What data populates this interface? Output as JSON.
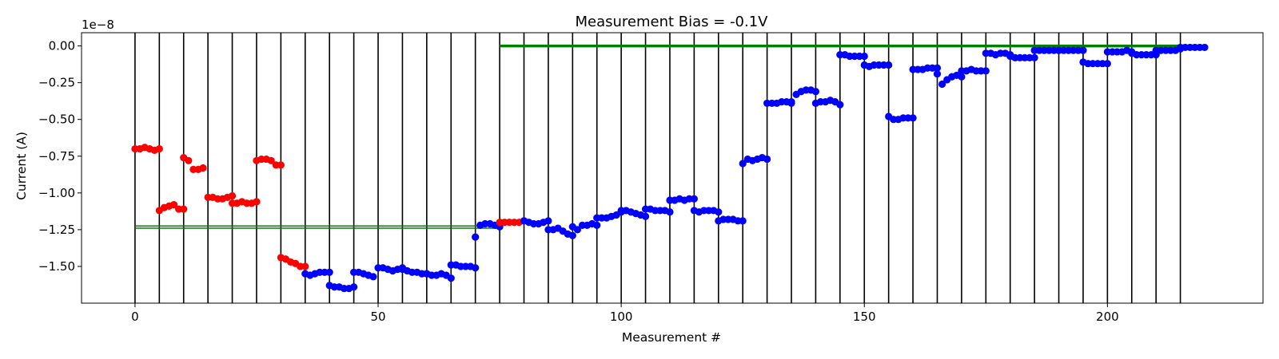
{
  "chart_data": {
    "type": "scatter",
    "title": "Measurement Bias = -0.1V",
    "xlabel": "Measurement #",
    "ylabel": "Current (A)",
    "offset_text": "1e−8",
    "xlim": [
      -11,
      232
    ],
    "ylim": [
      -1.75,
      0.09
    ],
    "y_scale_factor": "1e-8",
    "xticks": [
      0,
      50,
      100,
      150,
      200
    ],
    "xtick_labels": [
      "0",
      "50",
      "100",
      "150",
      "200"
    ],
    "yticks": [
      0.0,
      -0.25,
      -0.5,
      -0.75,
      -1.0,
      -1.25,
      -1.5
    ],
    "ytick_labels": [
      "0.00",
      "−0.25",
      "−0.50",
      "−0.75",
      "−1.00",
      "−1.25",
      "−1.50"
    ],
    "vertical_lines_x": [
      0,
      5,
      10,
      15,
      20,
      25,
      30,
      35,
      40,
      45,
      50,
      55,
      60,
      65,
      70,
      75,
      80,
      85,
      90,
      95,
      100,
      105,
      110,
      115,
      120,
      125,
      130,
      135,
      140,
      145,
      150,
      155,
      160,
      165,
      170,
      175,
      180,
      185,
      190,
      195,
      200,
      205,
      210,
      215
    ],
    "colors": {
      "red": "#ff0000",
      "blue": "#0000ff",
      "green": "#008000",
      "vline": "#000000"
    },
    "reference_lines": [
      {
        "color": "#008000",
        "x": [
          0,
          75
        ],
        "y": -1.225,
        "width": 1.5
      },
      {
        "color": "#008000",
        "x": [
          0,
          75
        ],
        "y": -1.24,
        "width": 1.5
      },
      {
        "color": "#008000",
        "x": [
          75,
          220
        ],
        "y": 0.0,
        "width": 3.5
      }
    ],
    "segments": [
      {
        "color": "red",
        "x0": 0,
        "values": [
          -0.7,
          -0.7,
          -0.69,
          -0.7,
          -0.71,
          -0.7
        ]
      },
      {
        "color": "red",
        "x0": 5,
        "values": [
          -1.12,
          -1.1,
          -1.09,
          -1.08,
          -1.11,
          -1.11
        ]
      },
      {
        "color": "red",
        "x0": 10,
        "values": [
          -0.76,
          -0.78,
          -0.84,
          -0.84,
          -0.83
        ]
      },
      {
        "color": "red",
        "x0": 15,
        "values": [
          -1.03,
          -1.03,
          -1.04,
          -1.04,
          -1.03,
          -1.02
        ]
      },
      {
        "color": "red",
        "x0": 20,
        "values": [
          -1.07,
          -1.07,
          -1.06,
          -1.07,
          -1.07,
          -1.06
        ]
      },
      {
        "color": "red",
        "x0": 25,
        "values": [
          -0.78,
          -0.77,
          -0.77,
          -0.78,
          -0.81,
          -0.81
        ]
      },
      {
        "color": "red",
        "x0": 30,
        "values": [
          -1.44,
          -1.45,
          -1.47,
          -1.48,
          -1.5,
          -1.5
        ]
      },
      {
        "color": "blue",
        "x0": 35,
        "values": [
          -1.55,
          -1.56,
          -1.55,
          -1.54,
          -1.54,
          -1.54
        ]
      },
      {
        "color": "blue",
        "x0": 40,
        "values": [
          -1.63,
          -1.64,
          -1.64,
          -1.65,
          -1.65,
          -1.64
        ]
      },
      {
        "color": "blue",
        "x0": 45,
        "values": [
          -1.54,
          -1.54,
          -1.55,
          -1.56,
          -1.57
        ]
      },
      {
        "color": "blue",
        "x0": 50,
        "values": [
          -1.51,
          -1.51,
          -1.52,
          -1.53,
          -1.52,
          -1.51
        ]
      },
      {
        "color": "blue",
        "x0": 55,
        "values": [
          -1.52,
          -1.53,
          -1.54,
          -1.54,
          -1.55,
          -1.55
        ]
      },
      {
        "color": "blue",
        "x0": 60,
        "values": [
          -1.55,
          -1.56,
          -1.56,
          -1.55,
          -1.56,
          -1.58
        ]
      },
      {
        "color": "blue",
        "x0": 65,
        "values": [
          -1.49,
          -1.49,
          -1.5,
          -1.5,
          -1.5,
          -1.51
        ]
      },
      {
        "color": "blue",
        "x0": 70,
        "values": [
          -1.3,
          -1.22,
          -1.21,
          -1.21,
          -1.22,
          -1.23
        ]
      },
      {
        "color": "red",
        "x0": 75,
        "values": [
          -1.2,
          -1.2,
          -1.2,
          -1.2,
          -1.2,
          -1.19
        ]
      },
      {
        "color": "blue",
        "x0": 80,
        "values": [
          -1.19,
          -1.2,
          -1.21,
          -1.21,
          -1.2,
          -1.19
        ]
      },
      {
        "color": "blue",
        "x0": 85,
        "values": [
          -1.25,
          -1.25,
          -1.24,
          -1.26,
          -1.28,
          -1.29
        ]
      },
      {
        "color": "blue",
        "x0": 90,
        "values": [
          -1.23,
          -1.25,
          -1.22,
          -1.22,
          -1.21,
          -1.22
        ]
      },
      {
        "color": "blue",
        "x0": 95,
        "values": [
          -1.17,
          -1.17,
          -1.17,
          -1.16,
          -1.15,
          -1.13
        ]
      },
      {
        "color": "blue",
        "x0": 100,
        "values": [
          -1.12,
          -1.12,
          -1.13,
          -1.14,
          -1.15,
          -1.16
        ]
      },
      {
        "color": "blue",
        "x0": 105,
        "values": [
          -1.11,
          -1.11,
          -1.12,
          -1.12,
          -1.12,
          -1.13
        ]
      },
      {
        "color": "blue",
        "x0": 110,
        "values": [
          -1.05,
          -1.05,
          -1.04,
          -1.05,
          -1.04,
          -1.04
        ]
      },
      {
        "color": "blue",
        "x0": 115,
        "values": [
          -1.12,
          -1.13,
          -1.12,
          -1.12,
          -1.12,
          -1.13
        ]
      },
      {
        "color": "blue",
        "x0": 120,
        "values": [
          -1.19,
          -1.18,
          -1.18,
          -1.18,
          -1.19,
          -1.19
        ]
      },
      {
        "color": "blue",
        "x0": 125,
        "values": [
          -0.8,
          -0.77,
          -0.78,
          -0.77,
          -0.76,
          -0.77
        ]
      },
      {
        "color": "blue",
        "x0": 130,
        "values": [
          -0.39,
          -0.39,
          -0.39,
          -0.38,
          -0.38,
          -0.38
        ]
      },
      {
        "color": "blue",
        "x0": 135,
        "values": [
          -0.39,
          -0.33,
          -0.31,
          -0.3,
          -0.3,
          -0.31
        ]
      },
      {
        "color": "blue",
        "x0": 140,
        "values": [
          -0.39,
          -0.38,
          -0.38,
          -0.37,
          -0.38,
          -0.4
        ]
      },
      {
        "color": "blue",
        "x0": 145,
        "values": [
          -0.06,
          -0.06,
          -0.07,
          -0.07,
          -0.07,
          -0.07
        ]
      },
      {
        "color": "blue",
        "x0": 150,
        "values": [
          -0.13,
          -0.14,
          -0.13,
          -0.13,
          -0.13,
          -0.13
        ]
      },
      {
        "color": "blue",
        "x0": 155,
        "values": [
          -0.48,
          -0.5,
          -0.5,
          -0.49,
          -0.49,
          -0.49
        ]
      },
      {
        "color": "blue",
        "x0": 160,
        "values": [
          -0.16,
          -0.16,
          -0.16,
          -0.15,
          -0.15,
          -0.15
        ]
      },
      {
        "color": "blue",
        "x0": 165,
        "values": [
          -0.19,
          -0.26,
          -0.23,
          -0.21,
          -0.2,
          -0.21
        ]
      },
      {
        "color": "blue",
        "x0": 170,
        "values": [
          -0.17,
          -0.17,
          -0.16,
          -0.17,
          -0.17,
          -0.17
        ]
      },
      {
        "color": "blue",
        "x0": 175,
        "values": [
          -0.05,
          -0.05,
          -0.06,
          -0.05,
          -0.05,
          -0.06
        ]
      },
      {
        "color": "blue",
        "x0": 180,
        "values": [
          -0.07,
          -0.08,
          -0.08,
          -0.08,
          -0.08,
          -0.08
        ]
      },
      {
        "color": "blue",
        "x0": 185,
        "values": [
          -0.03,
          -0.03,
          -0.03,
          -0.03,
          -0.03,
          -0.03
        ]
      },
      {
        "color": "blue",
        "x0": 190,
        "values": [
          -0.03,
          -0.03,
          -0.03,
          -0.03,
          -0.03,
          -0.03
        ]
      },
      {
        "color": "blue",
        "x0": 195,
        "values": [
          -0.11,
          -0.12,
          -0.12,
          -0.12,
          -0.12,
          -0.12
        ]
      },
      {
        "color": "blue",
        "x0": 200,
        "values": [
          -0.04,
          -0.04,
          -0.04,
          -0.04,
          -0.03,
          -0.04
        ]
      },
      {
        "color": "blue",
        "x0": 205,
        "values": [
          -0.05,
          -0.06,
          -0.06,
          -0.06,
          -0.06,
          -0.06
        ]
      },
      {
        "color": "blue",
        "x0": 210,
        "values": [
          -0.03,
          -0.03,
          -0.03,
          -0.03,
          -0.03,
          -0.02
        ]
      },
      {
        "color": "blue",
        "x0": 215,
        "values": [
          -0.01,
          -0.01,
          -0.01,
          -0.01,
          -0.01,
          -0.01
        ]
      }
    ]
  }
}
